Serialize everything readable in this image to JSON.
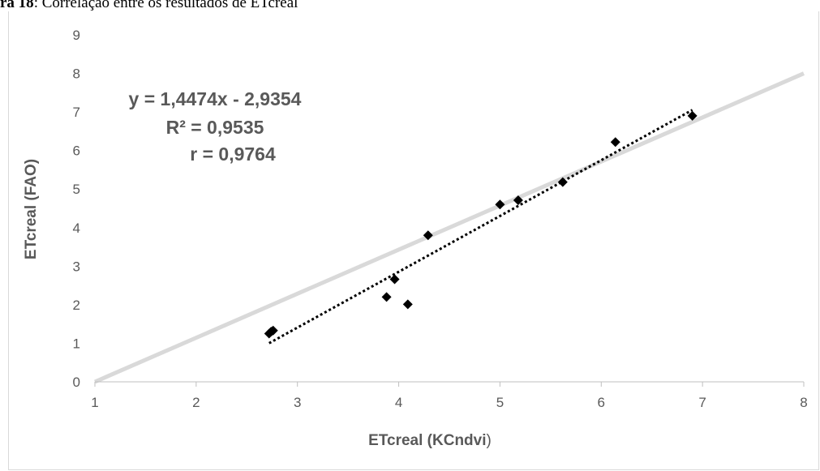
{
  "caption": {
    "label": "ra 18",
    "text": ": Correlação entre os resultados de ETcreal"
  },
  "chart_data": {
    "type": "scatter",
    "xlabel_main": "ETcreal (KCndvi",
    "xlabel_paren": ")",
    "ylabel": "ETcreal (FAO)",
    "xlim": [
      1,
      8
    ],
    "ylim": [
      0,
      9
    ],
    "xticks": [
      "1",
      "2",
      "3",
      "4",
      "5",
      "6",
      "7",
      "8"
    ],
    "yticks": [
      "0",
      "1",
      "2",
      "3",
      "4",
      "5",
      "6",
      "7",
      "8",
      "9"
    ],
    "grid": false,
    "annotation": {
      "equation": "y = 1,4474x - 2,9354",
      "r2": "R² = 0,9535",
      "r": "r = 0,9764"
    },
    "points": [
      {
        "x": 2.72,
        "y": 1.25
      },
      {
        "x": 2.74,
        "y": 1.3
      },
      {
        "x": 2.76,
        "y": 1.33
      },
      {
        "x": 3.88,
        "y": 2.2
      },
      {
        "x": 3.96,
        "y": 2.66
      },
      {
        "x": 4.09,
        "y": 2.01
      },
      {
        "x": 4.29,
        "y": 3.8
      },
      {
        "x": 5.0,
        "y": 4.6
      },
      {
        "x": 5.18,
        "y": 4.71
      },
      {
        "x": 5.62,
        "y": 5.18
      },
      {
        "x": 6.14,
        "y": 6.22
      },
      {
        "x": 6.9,
        "y": 6.9
      }
    ],
    "identity_line": {
      "x": [
        1,
        8
      ],
      "y": [
        0,
        8
      ],
      "color": "#d9d9d9"
    },
    "trendline": {
      "x": [
        2.72,
        6.9
      ],
      "slope": 1.4474,
      "intercept": -2.9354,
      "color": "#000000",
      "style": "dotted"
    },
    "marker": {
      "shape": "diamond",
      "color": "#000000"
    },
    "axis_color": "#bfbfbf",
    "text_color": "#595959"
  }
}
